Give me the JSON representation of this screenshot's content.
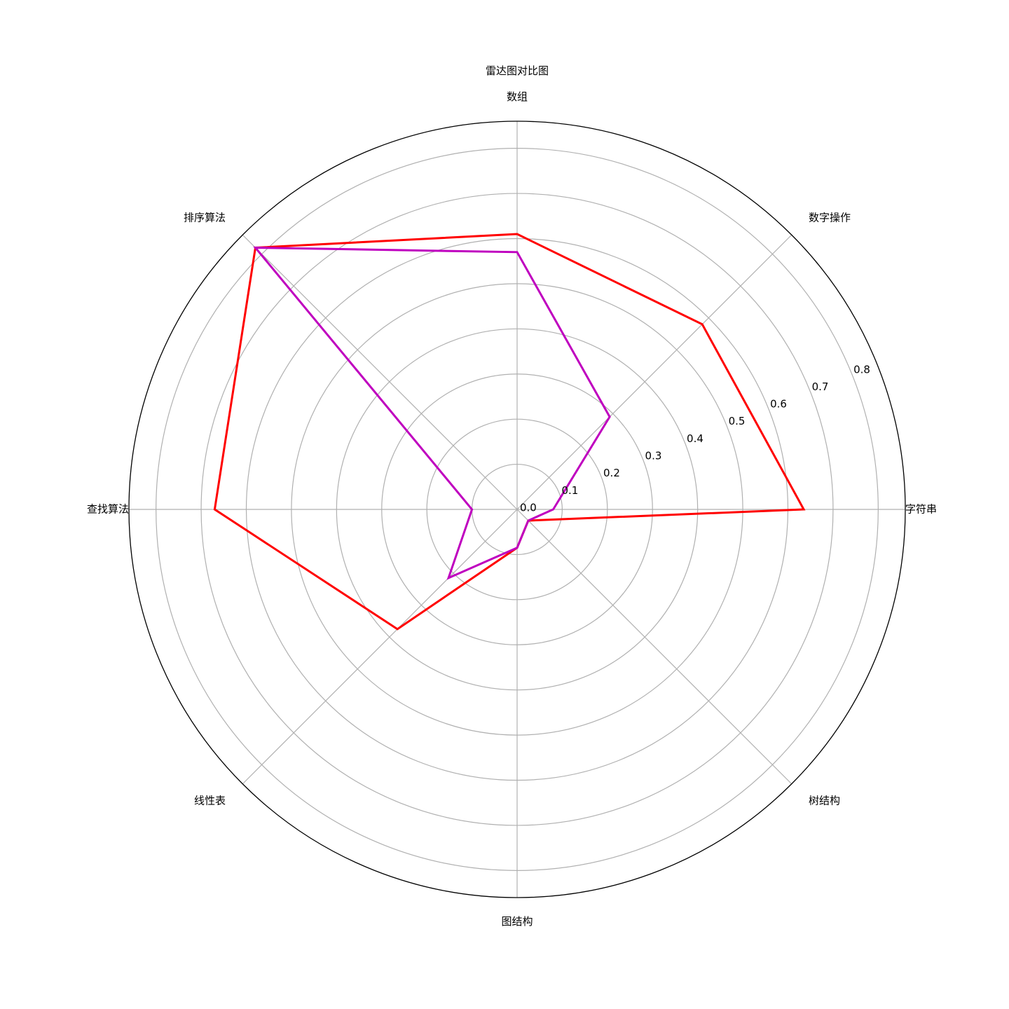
{
  "chart_data": {
    "type": "radar",
    "title": "雷达图对比图",
    "categories": [
      "字符串",
      "数字操作",
      "数组",
      "排序算法",
      "查找算法",
      "线性表",
      "图结构",
      "树结构"
    ],
    "rticks": [
      "0.0",
      "0.1",
      "0.2",
      "0.3",
      "0.4",
      "0.5",
      "0.6",
      "0.7",
      "0.8"
    ],
    "rlim": [
      0,
      0.86
    ],
    "grid": true,
    "series": [
      {
        "color": "#ff0000",
        "values": [
          0.635,
          0.58,
          0.61,
          0.82,
          0.67,
          0.375,
          0.085,
          0.035
        ]
      },
      {
        "color": "#bf00bf",
        "values": [
          0.08,
          0.29,
          0.57,
          0.82,
          0.1,
          0.215,
          0.085,
          0.035
        ]
      }
    ]
  }
}
